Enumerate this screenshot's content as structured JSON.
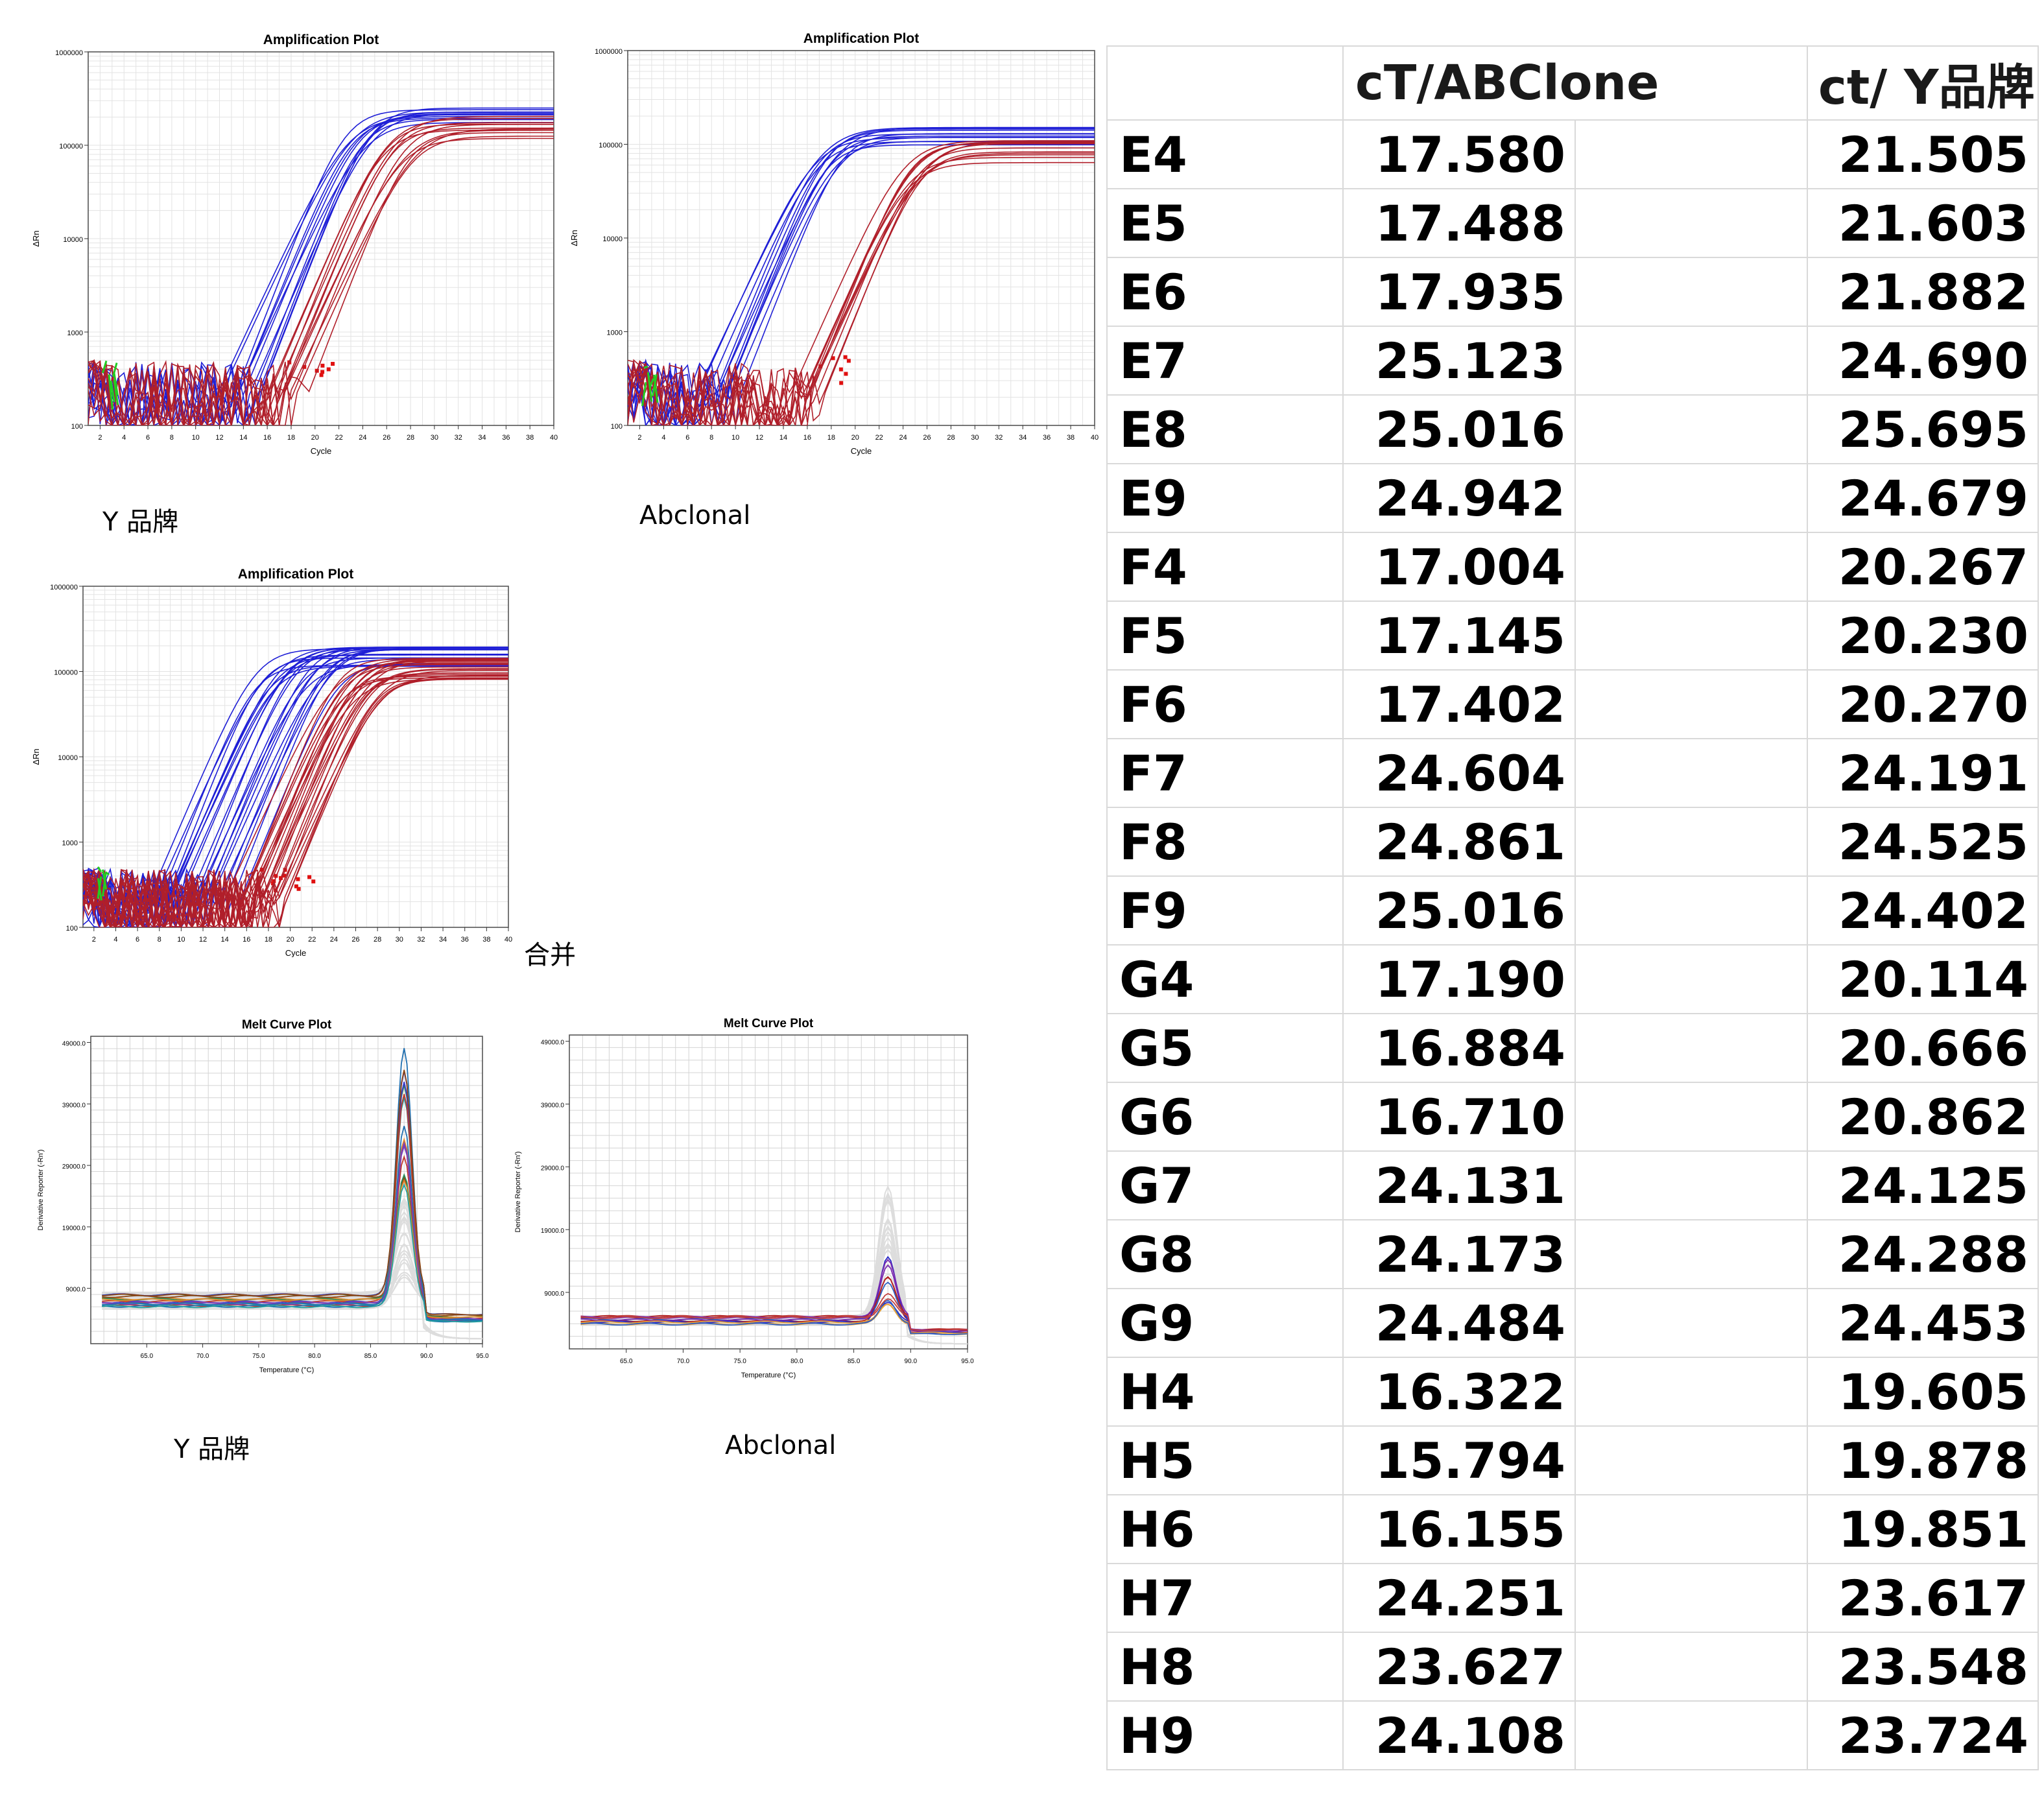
{
  "plots": {
    "amp_y": {
      "title": "Amplification Plot",
      "xlabel": "Cycle",
      "ylabel": "ΔRn",
      "caption": "Y 品牌"
    },
    "amp_abclonal": {
      "title": "Amplification Plot",
      "xlabel": "Cycle",
      "ylabel": "ΔRn",
      "caption": "Abclonal"
    },
    "amp_merged": {
      "title": "Amplification Plot",
      "xlabel": "Cycle",
      "ylabel": "ΔRn",
      "caption": "合并"
    },
    "melt_y": {
      "title": "Melt Curve Plot",
      "xlabel": "Temperature (°C)",
      "ylabel": "Derivative Reporter (-Rn')",
      "caption": "Y 品牌"
    },
    "melt_abclonal": {
      "title": "Melt Curve Plot",
      "xlabel": "Temperature (°C)",
      "ylabel": "Derivative Reporter (-Rn')",
      "caption": "Abclonal"
    }
  },
  "colors": {
    "series_blue": "#1f1fd6",
    "series_red": "#b01f2a",
    "baseline_green": "#22cc22",
    "grid": "#e3e3e3",
    "table_border": "#d9d9d9"
  },
  "chart_data": [
    {
      "type": "line",
      "id": "amp_y",
      "title": "Amplification Plot",
      "xlabel": "Cycle",
      "ylabel": "ΔRn",
      "yscale": "log",
      "xlim": [
        1,
        40
      ],
      "ylim": [
        100,
        1000000
      ],
      "xticks": [
        2,
        4,
        6,
        8,
        10,
        12,
        14,
        16,
        18,
        20,
        22,
        24,
        26,
        28,
        30,
        32,
        34,
        36,
        38,
        40
      ],
      "yticks": [
        100,
        1000,
        10000,
        100000,
        1000000
      ],
      "ytick_labels": [
        "100",
        "1000",
        "10000",
        "100000",
        "1000000"
      ],
      "grid": true,
      "series": [
        {
          "color": "blue",
          "count": 12,
          "midpoint_cycle_range": [
            22.5,
            25.0
          ],
          "plateau": 200000
        },
        {
          "color": "red",
          "count": 12,
          "midpoint_cycle_range": [
            25.5,
            28.5
          ],
          "plateau": 160000
        }
      ]
    },
    {
      "type": "line",
      "id": "amp_abclonal",
      "title": "Amplification Plot",
      "xlabel": "Cycle",
      "ylabel": "ΔRn",
      "yscale": "log",
      "xlim": [
        1,
        40
      ],
      "ylim": [
        100,
        1000000
      ],
      "xticks": [
        2,
        4,
        6,
        8,
        10,
        12,
        14,
        16,
        18,
        20,
        22,
        24,
        26,
        28,
        30,
        32,
        34,
        36,
        38,
        40
      ],
      "yticks": [
        100,
        1000,
        10000,
        100000,
        1000000
      ],
      "ytick_labels": [
        "100",
        "1000",
        "10000",
        "100000",
        "1000000"
      ],
      "grid": true,
      "series": [
        {
          "color": "blue",
          "count": 12,
          "midpoint_cycle_range": [
            16.5,
            19.0
          ],
          "plateau": 120000
        },
        {
          "color": "red",
          "count": 12,
          "midpoint_cycle_range": [
            24.0,
            26.0
          ],
          "plateau": 85000
        }
      ]
    },
    {
      "type": "line",
      "id": "amp_merged",
      "title": "Amplification Plot",
      "xlabel": "Cycle",
      "ylabel": "ΔRn",
      "yscale": "log",
      "xlim": [
        1,
        40
      ],
      "ylim": [
        100,
        1000000
      ],
      "xticks": [
        2,
        4,
        6,
        8,
        10,
        12,
        14,
        16,
        18,
        20,
        22,
        24,
        26,
        28,
        30,
        32,
        34,
        36,
        38,
        40
      ],
      "yticks": [
        100,
        1000,
        10000,
        100000,
        1000000
      ],
      "ytick_labels": [
        "100",
        "1000",
        "10000",
        "100000",
        "1000000"
      ],
      "grid": true,
      "series": [
        {
          "color": "blue",
          "count": 24,
          "midpoint_cycle_range": [
            16.5,
            24.5
          ],
          "plateau": 150000
        },
        {
          "color": "red",
          "count": 24,
          "midpoint_cycle_range": [
            24.0,
            28.5
          ],
          "plateau": 110000
        }
      ]
    },
    {
      "type": "line",
      "id": "melt_y",
      "title": "Melt Curve Plot",
      "xlabel": "Temperature (°C)",
      "ylabel": "Derivative Reporter (-Rn')",
      "xlim": [
        60,
        95
      ],
      "ylim": [
        0,
        50000
      ],
      "xticks": [
        65,
        70,
        75,
        80,
        85,
        90,
        95
      ],
      "xtick_labels": [
        "65.0",
        "70.0",
        "75.0",
        "80.0",
        "85.0",
        "90.0",
        "95.0"
      ],
      "yticks": [
        9000,
        19000,
        29000,
        39000,
        49000
      ],
      "ytick_labels": [
        "9000.0",
        "19000.0",
        "29000.0",
        "39000.0",
        "49000.0"
      ],
      "grid": true,
      "peak_temperature": 88.0,
      "peak_range": [
        24000,
        48000
      ],
      "baseline": 7000
    },
    {
      "type": "line",
      "id": "melt_abclonal",
      "title": "Melt Curve Plot",
      "xlabel": "Temperature (°C)",
      "ylabel": "Derivative Reporter (-Rn')",
      "xlim": [
        60,
        95
      ],
      "ylim": [
        0,
        50000
      ],
      "xticks": [
        65,
        70,
        75,
        80,
        85,
        90,
        95
      ],
      "xtick_labels": [
        "65.0",
        "70.0",
        "75.0",
        "80.0",
        "85.0",
        "90.0",
        "95.0"
      ],
      "yticks": [
        9000,
        19000,
        29000,
        39000,
        49000
      ],
      "ytick_labels": [
        "9000.0",
        "19000.0",
        "29000.0",
        "39000.0",
        "49000.0"
      ],
      "grid": true,
      "peak_temperature": 88.0,
      "peak_range": [
        7000,
        15000
      ],
      "baseline": 4500
    },
    {
      "type": "table",
      "id": "ct_table",
      "columns": [
        "",
        "cT/ABClone",
        "ct/ Y品牌"
      ],
      "rows": [
        [
          "E4",
          "17.580",
          "21.505"
        ],
        [
          "E5",
          "17.488",
          "21.603"
        ],
        [
          "E6",
          "17.935",
          "21.882"
        ],
        [
          "E7",
          "25.123",
          "24.690"
        ],
        [
          "E8",
          "25.016",
          "25.695"
        ],
        [
          "E9",
          "24.942",
          "24.679"
        ],
        [
          "F4",
          "17.004",
          "20.267"
        ],
        [
          "F5",
          "17.145",
          "20.230"
        ],
        [
          "F6",
          "17.402",
          "20.270"
        ],
        [
          "F7",
          "24.604",
          "24.191"
        ],
        [
          "F8",
          "24.861",
          "24.525"
        ],
        [
          "F9",
          "25.016",
          "24.402"
        ],
        [
          "G4",
          "17.190",
          "20.114"
        ],
        [
          "G5",
          "16.884",
          "20.666"
        ],
        [
          "G6",
          "16.710",
          "20.862"
        ],
        [
          "G7",
          "24.131",
          "24.125"
        ],
        [
          "G8",
          "24.173",
          "24.288"
        ],
        [
          "G9",
          "24.484",
          "24.453"
        ],
        [
          "H4",
          "16.322",
          "19.605"
        ],
        [
          "H5",
          "15.794",
          "19.878"
        ],
        [
          "H6",
          "16.155",
          "19.851"
        ],
        [
          "H7",
          "24.251",
          "23.617"
        ],
        [
          "H8",
          "23.627",
          "23.548"
        ],
        [
          "H9",
          "24.108",
          "23.724"
        ]
      ]
    }
  ]
}
